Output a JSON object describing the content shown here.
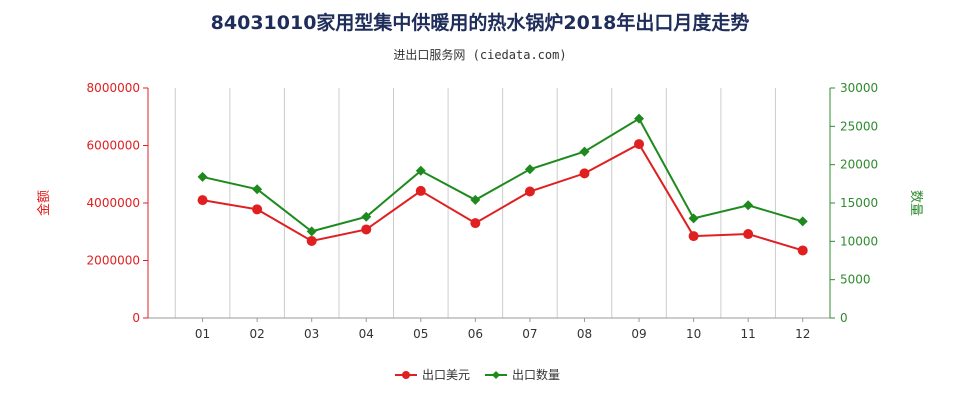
{
  "title": "84031010家用型集中供暖用的热水锅炉2018年出口月度走势",
  "subtitle": "进出口服务网 (ciedata.com)",
  "chart_data": {
    "type": "line",
    "categories": [
      "01",
      "02",
      "03",
      "04",
      "05",
      "06",
      "07",
      "08",
      "09",
      "10",
      "11",
      "12"
    ],
    "y_left": {
      "label": "金额",
      "min": 0,
      "max": 8000000,
      "ticks": [
        "0",
        "2000000",
        "4000000",
        "6000000",
        "8000000"
      ],
      "color": "#e02020"
    },
    "y_right": {
      "label": "数量",
      "min": 0,
      "max": 30000,
      "ticks": [
        "0",
        "5000",
        "10000",
        "15000",
        "20000",
        "25000",
        "30000"
      ],
      "color": "#2e8b2e"
    },
    "grid": "vertical",
    "legend_position": "bottom-center",
    "series": [
      {
        "name": "出口美元",
        "axis": "left",
        "color": "#e02020",
        "values": [
          4100000,
          3780000,
          2680000,
          3080000,
          4420000,
          3300000,
          4400000,
          5030000,
          6050000,
          2850000,
          2920000,
          2350000
        ]
      },
      {
        "name": "出口数量",
        "axis": "right",
        "color": "#1e8a1e",
        "values": [
          18400,
          16800,
          11300,
          13200,
          19200,
          15400,
          19400,
          21700,
          26000,
          13000,
          14700,
          12600
        ]
      }
    ]
  }
}
